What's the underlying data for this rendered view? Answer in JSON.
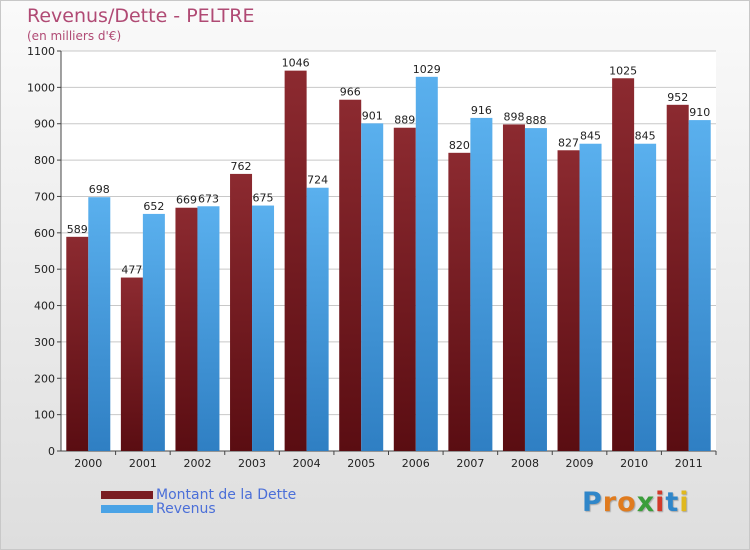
{
  "header": {
    "title": "Revenus/Dette - PELTRE",
    "subtitle": "(en milliers d'€)"
  },
  "colors": {
    "dette": "#7a1d22",
    "revenus": "#4aa3e6",
    "title": "#b04a74",
    "legend_text": "#4b6fd8"
  },
  "legend": {
    "dette_label": "Montant de la Dette",
    "revenus_label": "Revenus"
  },
  "logo": {
    "letters": [
      "P",
      "r",
      "o",
      "x",
      "i",
      "t",
      "i"
    ],
    "colors": [
      "#2f86c9",
      "#e07b1e",
      "#e07b1e",
      "#3b9e3b",
      "#d23a2a",
      "#2f86c9",
      "#e0b81e"
    ]
  },
  "chart_data": {
    "type": "bar",
    "title": "Revenus/Dette - PELTRE",
    "subtitle": "(en milliers d'€)",
    "xlabel": "",
    "ylabel": "",
    "categories": [
      "2000",
      "2001",
      "2002",
      "2003",
      "2004",
      "2005",
      "2006",
      "2007",
      "2008",
      "2009",
      "2010",
      "2011"
    ],
    "series": [
      {
        "name": "Montant de la Dette",
        "values": [
          589,
          477,
          669,
          762,
          1046,
          966,
          889,
          820,
          898,
          827,
          1025,
          952
        ]
      },
      {
        "name": "Revenus",
        "values": [
          698,
          652,
          673,
          675,
          724,
          901,
          1029,
          916,
          888,
          845,
          845,
          910
        ]
      }
    ],
    "ylim": [
      0,
      1100
    ],
    "yticks": [
      0,
      100,
      200,
      300,
      400,
      500,
      600,
      700,
      800,
      900,
      1000,
      1100
    ],
    "grid": true,
    "data_labels": true,
    "legend_position": "bottom-left"
  }
}
